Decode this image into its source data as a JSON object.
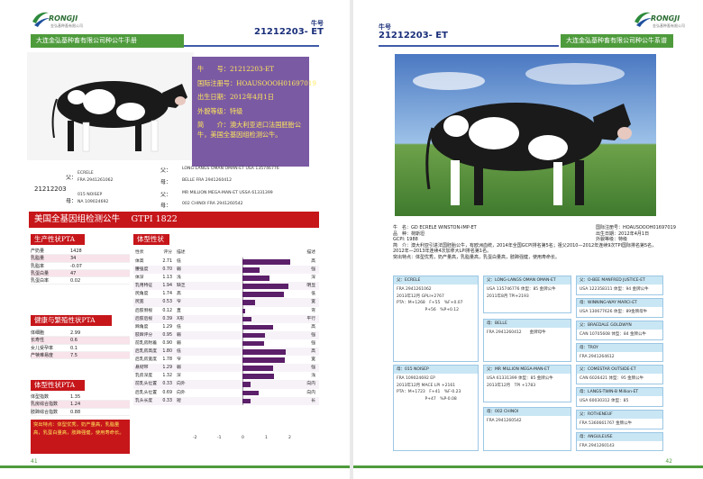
{
  "header": {
    "left_band": "大连金弘基种畜有限公司种公牛手册",
    "right_band": "大连金弘基种畜有限公司种公牛系谱",
    "bull_no_label": "牛号",
    "bull_no": "21212203- ET",
    "brand": "RONGJI",
    "brand_tag": "金弘基种畜有限公司"
  },
  "left": {
    "info": [
      "牛　　号：21212203-ET",
      "国际注册号：HOAUSOOOH01697019",
      "出生日期：2012年4月1日",
      "外貌等级：特级",
      "简　　介：澳大利亚进口法国胚胎公牛，美国全基因组检测公牛。"
    ],
    "pedigree_self": "21212203",
    "pedigree_sire_label": "父：",
    "pedigree_sire": [
      "ECRELE",
      "FRA  2941261062"
    ],
    "pedigree_dam_label": "母：",
    "pedigree_dam": [
      "015 NOISEP",
      "NA 109024692"
    ],
    "pedigree_ss_label": "父：",
    "pedigree_ss": "LONG-LANGS OMAN OMAN-ET   USA 135746776",
    "pedigree_sd_label": "母：",
    "pedigree_sd": "BELLE   FRA 2941260412",
    "pedigree_ds_label": "父：",
    "pedigree_ds": "MR MILLION MEGA-MAN-ET   USSA 61331399",
    "pedigree_dd_label": "母：",
    "pedigree_dd": "002 CHINOI  FRA 2941260542",
    "gtpi_title": "美国全基因组检测公牛　 GTPI 1822",
    "production_head": "生产性状PTA",
    "production": [
      {
        "k": "产奶量",
        "v": "1428"
      },
      {
        "k": "乳脂量",
        "v": "34"
      },
      {
        "k": "乳脂率",
        "v": "-0.07"
      },
      {
        "k": "乳蛋白量",
        "v": "47"
      },
      {
        "k": "乳蛋白率",
        "v": "0.02"
      }
    ],
    "health_head": "健康与繁殖性状PTA",
    "health": [
      {
        "k": "体细胞",
        "v": "2.99"
      },
      {
        "k": "长寿性",
        "v": "0.6"
      },
      {
        "k": "女儿受孕率",
        "v": "0.1"
      },
      {
        "k": "产犊难易度",
        "v": "7.5"
      }
    ],
    "type_head": "体型性状PTA",
    "type": [
      {
        "k": "体型指数",
        "v": "1.35"
      },
      {
        "k": "乳房综合指数",
        "v": "1.24"
      },
      {
        "k": "肢蹄综合指数",
        "v": "0.88"
      }
    ],
    "note": "突出特点：体型优秀，奶产量高，乳脂量高，乳蛋白量高，肢蹄强健，使用寿命长。",
    "conformation_head": "体型性状",
    "conformation_cols": [
      "性状",
      "评分",
      "描述",
      "描述"
    ],
    "conformation": [
      {
        "trait": "体高",
        "score": 2.71,
        "low": "低",
        "high": "高"
      },
      {
        "trait": "腰强度",
        "score": 0.7,
        "low": "弱",
        "high": "强"
      },
      {
        "trait": "体深",
        "score": 1.13,
        "low": "浅",
        "high": "深"
      },
      {
        "trait": "乳用特征",
        "score": 1.94,
        "low": "缺乏",
        "high": "明显"
      },
      {
        "trait": "尻角度",
        "score": 1.74,
        "low": "高",
        "high": "低"
      },
      {
        "trait": "尻宽",
        "score": 0.53,
        "low": "窄",
        "high": "宽"
      },
      {
        "trait": "后肢侧视",
        "score": 0.12,
        "low": "直",
        "high": "弯"
      },
      {
        "trait": "后肢后视",
        "score": 0.39,
        "low": "X形",
        "high": "平行"
      },
      {
        "trait": "蹄角度",
        "score": 1.29,
        "low": "低",
        "high": "高"
      },
      {
        "trait": "肢蹄评分",
        "score": 0.95,
        "low": "弱",
        "high": "强"
      },
      {
        "trait": "前乳房附着",
        "score": 0.9,
        "low": "弱",
        "high": "强"
      },
      {
        "trait": "后乳房高度",
        "score": 1.8,
        "low": "低",
        "high": "高"
      },
      {
        "trait": "后乳房宽度",
        "score": 1.78,
        "low": "窄",
        "high": "宽"
      },
      {
        "trait": "悬韧带",
        "score": 1.29,
        "low": "弱",
        "high": "强"
      },
      {
        "trait": "乳房深度",
        "score": 1.32,
        "low": "深",
        "high": "浅"
      },
      {
        "trait": "前乳头位置",
        "score": 0.33,
        "low": "向外",
        "high": "向内"
      },
      {
        "trait": "后乳头位置",
        "score": 0.69,
        "low": "向外",
        "high": "向内"
      },
      {
        "trait": "乳头长度",
        "score": 0.33,
        "low": "短",
        "high": "长"
      }
    ],
    "axis": [
      "-2",
      "-1",
      "0",
      "1",
      "2"
    ],
    "page_number": "41"
  },
  "right": {
    "info": [
      "牛　名：GD ECRELE WINSTON-IMP-ET",
      "品　种：荷斯坦",
      "GCPI: 1988",
      "简　介：澳大利亚引进法国胚胎公牛，有欧洲血统，2014年全国GCPI排名第5名；祖父2010—2012年连续9次TPI国际排名第5名，2012年—2013年连续4次加拿大LPI排名第1名。",
      "突出特点：体型优秀，奶产量高，乳脂量高，乳蛋白量高，肢蹄强健，使用寿命长。"
    ],
    "info_right": [
      "国际注册号：HOAUSOOOH01697019",
      "出生日期：2012年4月1日",
      "外貌等级：特级"
    ],
    "ped": {
      "sire": {
        "h": "父：ECRELE",
        "b": [
          "FRA 2941261062",
          "2013年12月 GPLI+2767",
          "PTA：M+1268　F+55　%F+0.07",
          "　　　　　　　P+56　%P+0.12"
        ]
      },
      "ss": {
        "h": "父：LONG-LANGS OMAN OMAN-ET",
        "b": [
          "USA 135746776  体型：85  金牌公牛",
          "2011年8月 TPI+2193"
        ]
      },
      "sd": {
        "h": "母：BELLE",
        "b": [
          "FRA 2941260412　　金牌母牛"
        ]
      },
      "sss": {
        "h": "父：O-BEE MANFRED JUSTICE-ET",
        "b": [
          "USA 122358311 体型：94 金牌公牛"
        ]
      },
      "ssd": {
        "h": "母：WINNING-WAY MARCI-ET",
        "b": [
          "USA 130677626 体型：89金牌母牛"
        ]
      },
      "sds": {
        "h": "父：BRAEDALE GOLDWYN",
        "b": [
          "CAN 10705608  体型：84 金牌公牛"
        ]
      },
      "sdd": {
        "h": "母：TROY",
        "b": [
          "FRA 2941264612"
        ]
      },
      "dam": {
        "h": "母：015 NOISEP",
        "b": [
          "FRA 109024692 EP",
          "2013年12月 MACE LPI +2161",
          "PTA：M+1723　F+41　%F-0.23",
          "　　　　　　　P+47　%P-0.08"
        ]
      },
      "ds": {
        "h": "父：MR MILLION MEGA-MAN-ET",
        "b": [
          "USA 61331399  体型：85  金牌公牛",
          "2013年12月　TPI +1783"
        ]
      },
      "dd": {
        "h": "母：002 CHINOI",
        "b": [
          "FRA 2941260542"
        ]
      },
      "dss": {
        "h": "父：COMESTAR OUTSIDE-ET",
        "b": [
          "CAN 6026421  体型：95 金牌公牛"
        ]
      },
      "dsd": {
        "h": "母：LANGS-TWIN-B Million-ET",
        "b": [
          "USA 60030312 体型：85"
        ]
      },
      "dds": {
        "h": "父：ROTHENEUF",
        "b": [
          "FRA 5360661767 金牌公牛"
        ]
      },
      "ddd": {
        "h": "母：ANGULEUSE",
        "b": [
          "FRA 2941260143"
        ]
      }
    },
    "page_number": "42"
  }
}
